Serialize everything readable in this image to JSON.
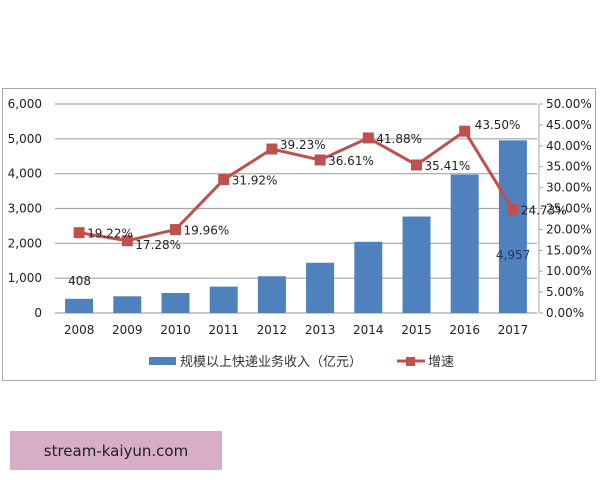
{
  "chart_data": {
    "type": "bar+line",
    "title": "",
    "categories": [
      "2008",
      "2009",
      "2010",
      "2011",
      "2012",
      "2013",
      "2014",
      "2015",
      "2016",
      "2017"
    ],
    "series": [
      {
        "name": "规模以上快递业务收入（亿元）",
        "type": "bar",
        "axis": "left",
        "color": "#4f81bd",
        "values": [
          408,
          479,
          574,
          758,
          1055,
          1442,
          2045,
          2770,
          3974,
          4957
        ],
        "labeled_points": {
          "2008": "408",
          "2017": "4,957"
        }
      },
      {
        "name": "增速",
        "type": "line",
        "axis": "right",
        "color": "#c0504d",
        "values": [
          19.22,
          17.28,
          19.96,
          31.92,
          39.23,
          36.61,
          41.88,
          35.41,
          43.5,
          24.73
        ],
        "labels": [
          "19.22%",
          "17.28%",
          "19.96%",
          "31.92%",
          "39.23%",
          "36.61%",
          "41.88%",
          "35.41%",
          "43.50%",
          "24.73%"
        ]
      }
    ],
    "left_axis": {
      "ylim": [
        0,
        6000
      ],
      "ticks": [
        "0",
        "1,000",
        "2,000",
        "3,000",
        "4,000",
        "5,000",
        "6,000"
      ]
    },
    "right_axis": {
      "ylim": [
        0,
        50
      ],
      "ticks": [
        "0.00%",
        "5.00%",
        "10.00%",
        "15.00%",
        "20.00%",
        "25.00%",
        "30.00%",
        "35.00%",
        "40.00%",
        "45.00%",
        "50.00%"
      ]
    },
    "xlabel": "",
    "ylabel": "",
    "grid": true,
    "legend_position": "bottom"
  },
  "legend": {
    "bar_label": "规模以上快递业务收入（亿元）",
    "line_label": "增速"
  },
  "watermark": {
    "text": "stream-kaiyun.com"
  }
}
